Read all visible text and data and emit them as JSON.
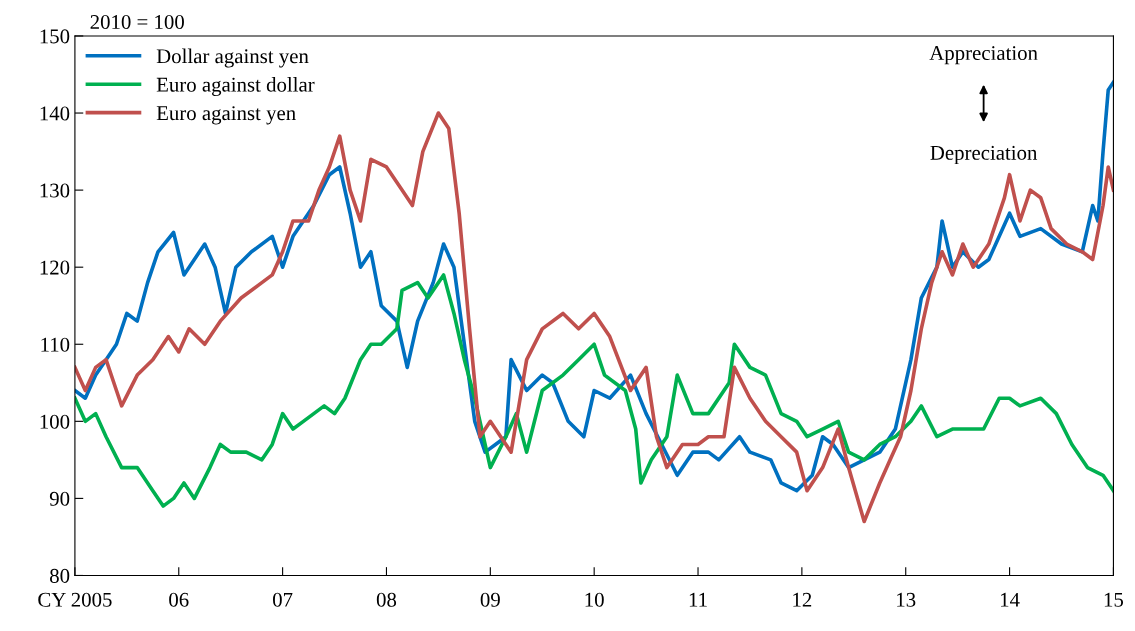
{
  "chart_data": {
    "type": "line",
    "ylabel": "2010 = 100",
    "xlim": [
      2005,
      2015
    ],
    "xticks": [
      {
        "value": 2005,
        "label": "CY 2005"
      },
      {
        "value": 2006,
        "label": "06"
      },
      {
        "value": 2007,
        "label": "07"
      },
      {
        "value": 2008,
        "label": "08"
      },
      {
        "value": 2009,
        "label": "09"
      },
      {
        "value": 2010,
        "label": "10"
      },
      {
        "value": 2011,
        "label": "11"
      },
      {
        "value": 2012,
        "label": "12"
      },
      {
        "value": 2013,
        "label": "13"
      },
      {
        "value": 2014,
        "label": "14"
      },
      {
        "value": 2015,
        "label": "15"
      }
    ],
    "ylim": [
      80,
      150
    ],
    "yticks": [
      80,
      90,
      100,
      110,
      120,
      130,
      140,
      150
    ],
    "grid": false,
    "legend": "top left",
    "marker": "none",
    "line_style": "solid",
    "annotations": [
      "Appreciation",
      "Depreciation"
    ],
    "series": [
      {
        "name": "Dollar against yen",
        "color": "#0070c0",
        "x": [
          2005.0,
          2005.1,
          2005.2,
          2005.3,
          2005.4,
          2005.5,
          2005.6,
          2005.7,
          2005.8,
          2005.95,
          2006.05,
          2006.15,
          2006.25,
          2006.35,
          2006.45,
          2006.55,
          2006.7,
          2006.9,
          2007.0,
          2007.1,
          2007.3,
          2007.45,
          2007.55,
          2007.65,
          2007.75,
          2007.85,
          2007.95,
          2008.1,
          2008.2,
          2008.3,
          2008.45,
          2008.55,
          2008.65,
          2008.75,
          2008.85,
          2008.95,
          2009.05,
          2009.15,
          2009.2,
          2009.35,
          2009.5,
          2009.6,
          2009.75,
          2009.9,
          2010.0,
          2010.15,
          2010.35,
          2010.5,
          2010.65,
          2010.8,
          2010.95,
          2011.1,
          2011.2,
          2011.4,
          2011.5,
          2011.7,
          2011.8,
          2011.95,
          2012.1,
          2012.2,
          2012.3,
          2012.45,
          2012.6,
          2012.75,
          2012.9,
          2013.05,
          2013.15,
          2013.3,
          2013.35,
          2013.45,
          2013.55,
          2013.7,
          2013.8,
          2014.0,
          2014.1,
          2014.3,
          2014.5,
          2014.7,
          2014.8,
          2014.85,
          2014.9,
          2014.95,
          2015.0
        ],
        "values": [
          104,
          103,
          106,
          108,
          110,
          114,
          113,
          118,
          122,
          124.5,
          119,
          121,
          123,
          120,
          114,
          120,
          122,
          124,
          120,
          124,
          128,
          132,
          133,
          127,
          120,
          122,
          115,
          113,
          107,
          113,
          118,
          123,
          120,
          110,
          100,
          96,
          97,
          98,
          108,
          104,
          106,
          105,
          100,
          98,
          104,
          103,
          106,
          101,
          97,
          93,
          96,
          96,
          95,
          98,
          96,
          95,
          92,
          91,
          93,
          98,
          97,
          94,
          95,
          96,
          99,
          108,
          116,
          120,
          126,
          120,
          122,
          120,
          121,
          127,
          124,
          125,
          123,
          122,
          128,
          126,
          135,
          143,
          144
        ]
      },
      {
        "name": "Euro against dollar",
        "color": "#00b050",
        "x": [
          2005.0,
          2005.1,
          2005.2,
          2005.3,
          2005.45,
          2005.6,
          2005.75,
          2005.85,
          2005.95,
          2006.05,
          2006.15,
          2006.3,
          2006.4,
          2006.5,
          2006.65,
          2006.8,
          2006.9,
          2007.0,
          2007.1,
          2007.2,
          2007.4,
          2007.5,
          2007.6,
          2007.75,
          2007.85,
          2007.95,
          2008.1,
          2008.15,
          2008.3,
          2008.4,
          2008.55,
          2008.65,
          2008.75,
          2008.85,
          2009.0,
          2009.15,
          2009.25,
          2009.35,
          2009.5,
          2009.7,
          2009.85,
          2010.0,
          2010.1,
          2010.3,
          2010.4,
          2010.45,
          2010.55,
          2010.7,
          2010.8,
          2010.95,
          2011.1,
          2011.3,
          2011.35,
          2011.5,
          2011.65,
          2011.8,
          2011.95,
          2012.05,
          2012.2,
          2012.35,
          2012.45,
          2012.6,
          2012.75,
          2012.9,
          2013.05,
          2013.15,
          2013.3,
          2013.45,
          2013.6,
          2013.75,
          2013.9,
          2014.0,
          2014.1,
          2014.3,
          2014.45,
          2014.6,
          2014.75,
          2014.9,
          2015.0
        ],
        "values": [
          103,
          100,
          101,
          98,
          94,
          94,
          91,
          89,
          90,
          92,
          90,
          94,
          97,
          96,
          96,
          95,
          97,
          101,
          99,
          100,
          102,
          101,
          103,
          108,
          110,
          110,
          112,
          117,
          118,
          116,
          119,
          114,
          108,
          103,
          94,
          98,
          101,
          96,
          104,
          106,
          108,
          110,
          106,
          104,
          99,
          92,
          95,
          98,
          106,
          101,
          101,
          105,
          110,
          107,
          106,
          101,
          100,
          98,
          99,
          100,
          96,
          95,
          97,
          98,
          100,
          102,
          98,
          99,
          99,
          99,
          103,
          103,
          102,
          103,
          101,
          97,
          94,
          93,
          91
        ]
      },
      {
        "name": "Euro against yen",
        "color": "#c0504d",
        "x": [
          2005.0,
          2005.1,
          2005.2,
          2005.3,
          2005.4,
          2005.45,
          2005.6,
          2005.75,
          2005.9,
          2006.0,
          2006.1,
          2006.25,
          2006.4,
          2006.6,
          2006.8,
          2006.9,
          2007.0,
          2007.1,
          2007.25,
          2007.35,
          2007.45,
          2007.55,
          2007.65,
          2007.75,
          2007.85,
          2008.0,
          2008.15,
          2008.25,
          2008.35,
          2008.5,
          2008.6,
          2008.7,
          2008.8,
          2008.9,
          2009.0,
          2009.1,
          2009.2,
          2009.35,
          2009.5,
          2009.7,
          2009.85,
          2010.0,
          2010.15,
          2010.35,
          2010.5,
          2010.6,
          2010.7,
          2010.85,
          2011.0,
          2011.1,
          2011.25,
          2011.35,
          2011.5,
          2011.65,
          2011.8,
          2011.95,
          2012.05,
          2012.2,
          2012.35,
          2012.45,
          2012.6,
          2012.75,
          2012.85,
          2012.95,
          2013.05,
          2013.15,
          2013.25,
          2013.35,
          2013.45,
          2013.55,
          2013.65,
          2013.8,
          2013.95,
          2014.0,
          2014.1,
          2014.2,
          2014.3,
          2014.4,
          2014.55,
          2014.7,
          2014.8,
          2014.9,
          2014.95,
          2015.0
        ],
        "values": [
          107,
          104,
          107,
          108,
          104,
          102,
          106,
          108,
          111,
          109,
          112,
          110,
          113,
          116,
          118,
          119,
          122,
          126,
          126,
          130,
          133,
          137,
          130,
          126,
          134,
          133,
          130,
          128,
          135,
          140,
          138,
          127,
          112,
          98,
          100,
          98,
          96,
          108,
          112,
          114,
          112,
          114,
          111,
          104,
          107,
          98,
          94,
          97,
          97,
          98,
          98,
          107,
          103,
          100,
          98,
          96,
          91,
          94,
          99,
          94,
          87,
          92,
          95,
          98,
          104,
          112,
          118,
          122,
          119,
          123,
          120,
          123,
          129,
          132,
          126,
          130,
          129,
          125,
          123,
          122,
          121,
          128,
          133,
          130
        ]
      }
    ]
  }
}
